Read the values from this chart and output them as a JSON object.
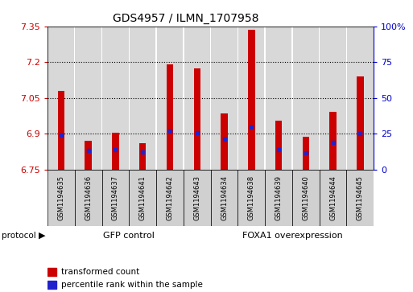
{
  "title": "GDS4957 / ILMN_1707958",
  "samples": [
    "GSM1194635",
    "GSM1194636",
    "GSM1194637",
    "GSM1194641",
    "GSM1194642",
    "GSM1194643",
    "GSM1194634",
    "GSM1194638",
    "GSM1194639",
    "GSM1194640",
    "GSM1194644",
    "GSM1194645"
  ],
  "bar_tops": [
    7.08,
    6.87,
    6.905,
    6.86,
    7.19,
    7.175,
    6.985,
    7.335,
    6.953,
    6.888,
    6.993,
    7.14
  ],
  "blue_markers": [
    6.893,
    6.83,
    6.832,
    6.822,
    6.912,
    6.903,
    6.875,
    6.928,
    6.832,
    6.82,
    6.863,
    6.9
  ],
  "bar_bottom": 6.75,
  "ylim_left": [
    6.75,
    7.35
  ],
  "yticks_left": [
    6.75,
    6.9,
    7.05,
    7.2,
    7.35
  ],
  "ytick_labels_left": [
    "6.75",
    "6.9",
    "7.05",
    "7.2",
    "7.35"
  ],
  "ylim_right": [
    0,
    100
  ],
  "yticks_right": [
    0,
    25,
    50,
    75,
    100
  ],
  "ytick_labels_right": [
    "0",
    "25",
    "50",
    "75",
    "100%"
  ],
  "bar_color": "#cc0000",
  "blue_color": "#2222cc",
  "group1_label": "GFP control",
  "group2_label": "FOXA1 overexpression",
  "group1_count": 6,
  "group2_count": 6,
  "group_color": "#90ee90",
  "protocol_label": "protocol",
  "legend_red": "transformed count",
  "legend_blue": "percentile rank within the sample",
  "bar_width": 0.25,
  "tick_color_left": "#cc0000",
  "tick_color_right": "#0000cc",
  "background_plot": "#ffffff",
  "background_col": "#d8d8d8",
  "sample_box_color": "#d0d0d0",
  "grid_lines": [
    6.9,
    7.05,
    7.2
  ]
}
